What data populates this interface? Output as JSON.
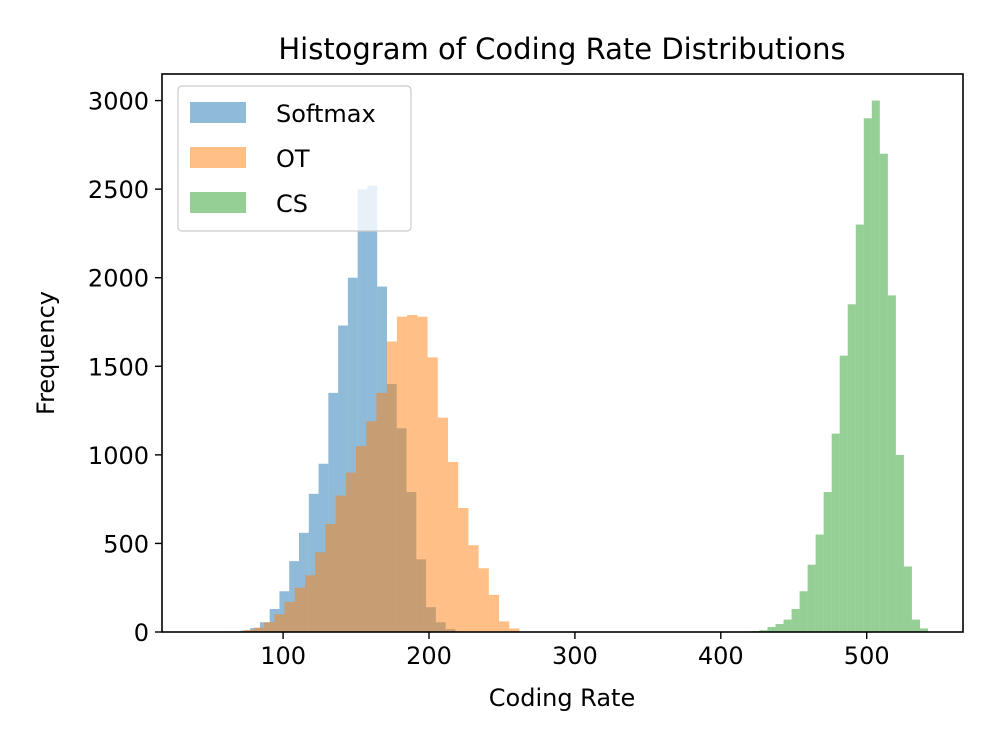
{
  "chart_data": {
    "type": "histogram",
    "title": "Histogram of Coding Rate Distributions",
    "xlabel": "Coding Rate",
    "ylabel": "Frequency",
    "xlim": [
      17,
      566
    ],
    "ylim": [
      0,
      3150
    ],
    "x_ticks": [
      100,
      200,
      300,
      400,
      500
    ],
    "y_ticks": [
      0,
      500,
      1000,
      1500,
      2000,
      2500,
      3000
    ],
    "legend_position": "top-left",
    "alpha": 0.5,
    "series": [
      {
        "name": "Softmax",
        "color": "#1f77b4",
        "bin_width": 6.7,
        "bin_starts": [
          64,
          70.7,
          77.4,
          84.1,
          90.8,
          97.5,
          104.2,
          110.9,
          117.6,
          124.3,
          131.0,
          137.7,
          144.4,
          151.1,
          157.8,
          164.5,
          171.2,
          177.9,
          184.6,
          191.3,
          198.0,
          204.7,
          211.4,
          218.1
        ],
        "values": [
          3,
          8,
          22,
          55,
          130,
          230,
          400,
          560,
          780,
          950,
          1350,
          1730,
          2000,
          2500,
          2520,
          1950,
          1400,
          1150,
          790,
          410,
          140,
          55,
          16,
          3
        ]
      },
      {
        "name": "OT",
        "color": "#ff7f0e",
        "bin_width": 7.0,
        "bin_starts": [
          73,
          80,
          87,
          94,
          101,
          108,
          115,
          122,
          129,
          136,
          143,
          150,
          157,
          164,
          171,
          178,
          185,
          192,
          199,
          206,
          213,
          220,
          227,
          234,
          241,
          248,
          255
        ],
        "values": [
          12,
          25,
          55,
          100,
          170,
          250,
          320,
          450,
          610,
          770,
          900,
          1050,
          1190,
          1350,
          1640,
          1780,
          1790,
          1780,
          1550,
          1210,
          960,
          700,
          490,
          360,
          210,
          60,
          20
        ]
      },
      {
        "name": "CS",
        "color": "#2ca02c",
        "bin_width": 5.5,
        "bin_starts": [
          421,
          426.5,
          432,
          437.5,
          443,
          448.5,
          454,
          459.5,
          465,
          470.5,
          476,
          481.5,
          487,
          492.5,
          498,
          503.5,
          509,
          514.5,
          520,
          525.5,
          531,
          536.5
        ],
        "values": [
          5,
          10,
          28,
          45,
          70,
          130,
          230,
          380,
          550,
          790,
          1120,
          1560,
          1850,
          2300,
          2900,
          3000,
          2700,
          1900,
          1000,
          370,
          70,
          20
        ]
      }
    ]
  }
}
